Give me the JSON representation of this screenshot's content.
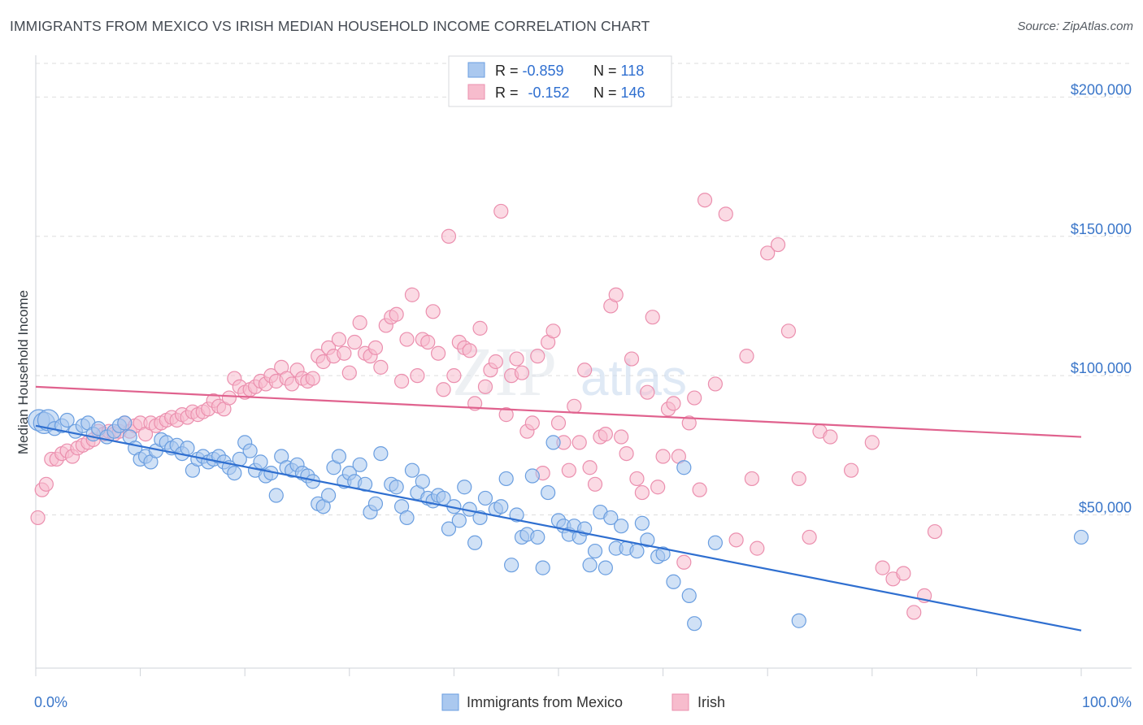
{
  "header": {
    "title": "IMMIGRANTS FROM MEXICO VS IRISH MEDIAN HOUSEHOLD INCOME CORRELATION CHART",
    "source": "Source: ZipAtlas.com"
  },
  "watermark": {
    "zip": "ZIP",
    "atlas": "atlas"
  },
  "colors": {
    "blue_fill": "#aac8ef",
    "blue_stroke": "#6a9ee0",
    "blue_line": "#2f6fd0",
    "pink_fill": "#f7bccd",
    "pink_stroke": "#eb8fae",
    "pink_line": "#e0628e",
    "tick_label": "#3a76c9",
    "grid": "#dddddd"
  },
  "chart_data": {
    "type": "scatter",
    "xlabel": "",
    "ylabel": "Median Household Income",
    "xlim": [
      0,
      100
    ],
    "ylim": [
      -5000,
      215000
    ],
    "x_tick_labels": [
      {
        "value": 0,
        "label": "0.0%"
      },
      {
        "value": 100,
        "label": "100.0%"
      }
    ],
    "y_ticks": [
      {
        "value": 50000,
        "label": "$50,000"
      },
      {
        "value": 100000,
        "label": "$100,000"
      },
      {
        "value": 150000,
        "label": "$150,000"
      },
      {
        "value": 200000,
        "label": "$200,000"
      }
    ],
    "grid": "horizontal dashed",
    "legend_placement": "top-center",
    "series": [
      {
        "name": "Immigrants from Mexico",
        "color": "blue",
        "R": "-0.859",
        "N": "118",
        "trend": [
          [
            0,
            82000
          ],
          [
            100,
            8500
          ]
        ],
        "points": [
          [
            0.3,
            84000
          ],
          [
            0.8,
            83000
          ],
          [
            1.2,
            84000
          ],
          [
            1.8,
            81000
          ],
          [
            2.5,
            82000
          ],
          [
            3.0,
            84000
          ],
          [
            3.8,
            80000
          ],
          [
            4.5,
            82000
          ],
          [
            5.0,
            83000
          ],
          [
            5.5,
            79000
          ],
          [
            6.0,
            81000
          ],
          [
            6.8,
            78000
          ],
          [
            7.5,
            80000
          ],
          [
            8.0,
            82000
          ],
          [
            8.5,
            83000
          ],
          [
            9.0,
            78000
          ],
          [
            9.5,
            74000
          ],
          [
            10.0,
            70000
          ],
          [
            10.5,
            71000
          ],
          [
            11.0,
            69000
          ],
          [
            11.5,
            73000
          ],
          [
            12.0,
            77000
          ],
          [
            12.5,
            76000
          ],
          [
            13.0,
            74000
          ],
          [
            13.5,
            75000
          ],
          [
            14.0,
            72000
          ],
          [
            14.5,
            74000
          ],
          [
            15.0,
            66000
          ],
          [
            15.5,
            70000
          ],
          [
            16.0,
            71000
          ],
          [
            16.5,
            69000
          ],
          [
            17.0,
            70000
          ],
          [
            17.5,
            71000
          ],
          [
            18.0,
            69000
          ],
          [
            18.5,
            67000
          ],
          [
            19.0,
            65000
          ],
          [
            19.5,
            70000
          ],
          [
            20.0,
            76000
          ],
          [
            20.5,
            73000
          ],
          [
            21.0,
            66000
          ],
          [
            21.5,
            69000
          ],
          [
            22.0,
            64000
          ],
          [
            22.5,
            65000
          ],
          [
            23.0,
            57000
          ],
          [
            23.5,
            71000
          ],
          [
            24.0,
            67000
          ],
          [
            24.5,
            66000
          ],
          [
            25.0,
            68000
          ],
          [
            25.5,
            65000
          ],
          [
            26.0,
            64000
          ],
          [
            26.5,
            62000
          ],
          [
            27.0,
            54000
          ],
          [
            27.5,
            53000
          ],
          [
            28.0,
            57000
          ],
          [
            28.5,
            67000
          ],
          [
            29.0,
            71000
          ],
          [
            29.5,
            62000
          ],
          [
            30.0,
            65000
          ],
          [
            30.5,
            62000
          ],
          [
            31.0,
            68000
          ],
          [
            31.5,
            61000
          ],
          [
            32.0,
            51000
          ],
          [
            32.5,
            54000
          ],
          [
            33.0,
            72000
          ],
          [
            34.0,
            61000
          ],
          [
            34.5,
            60000
          ],
          [
            35.0,
            53000
          ],
          [
            35.5,
            49000
          ],
          [
            36.0,
            66000
          ],
          [
            36.5,
            58000
          ],
          [
            37.0,
            62000
          ],
          [
            37.5,
            56000
          ],
          [
            38.0,
            55000
          ],
          [
            38.5,
            57000
          ],
          [
            39.0,
            56000
          ],
          [
            39.5,
            45000
          ],
          [
            40.0,
            53000
          ],
          [
            40.5,
            48000
          ],
          [
            41.0,
            60000
          ],
          [
            41.5,
            52000
          ],
          [
            42.0,
            40000
          ],
          [
            42.5,
            49000
          ],
          [
            43.0,
            56000
          ],
          [
            44.0,
            52000
          ],
          [
            44.5,
            53000
          ],
          [
            45.0,
            63000
          ],
          [
            45.5,
            32000
          ],
          [
            46.0,
            50000
          ],
          [
            46.5,
            42000
          ],
          [
            47.0,
            43000
          ],
          [
            47.5,
            64000
          ],
          [
            48.0,
            42000
          ],
          [
            48.5,
            31000
          ],
          [
            49.0,
            58000
          ],
          [
            49.5,
            76000
          ],
          [
            50.0,
            48000
          ],
          [
            50.5,
            46000
          ],
          [
            51.0,
            43000
          ],
          [
            51.5,
            46000
          ],
          [
            52.0,
            42000
          ],
          [
            52.5,
            45000
          ],
          [
            53.0,
            32000
          ],
          [
            53.5,
            37000
          ],
          [
            54.0,
            51000
          ],
          [
            54.5,
            31000
          ],
          [
            55.0,
            49000
          ],
          [
            55.5,
            38000
          ],
          [
            56.0,
            46000
          ],
          [
            56.5,
            38000
          ],
          [
            57.5,
            37000
          ],
          [
            58.0,
            47000
          ],
          [
            58.5,
            41000
          ],
          [
            59.5,
            35000
          ],
          [
            60.0,
            36000
          ],
          [
            61.0,
            26000
          ],
          [
            62.0,
            67000
          ],
          [
            62.5,
            21000
          ],
          [
            63.0,
            11000
          ],
          [
            65.0,
            40000
          ],
          [
            73.0,
            12000
          ],
          [
            100.0,
            42000
          ]
        ]
      },
      {
        "name": "Irish",
        "color": "pink",
        "R": "-0.152",
        "N": "146",
        "trend": [
          [
            0,
            96000
          ],
          [
            100,
            78000
          ]
        ],
        "points": [
          [
            0.2,
            49000
          ],
          [
            0.6,
            59000
          ],
          [
            1.0,
            61000
          ],
          [
            1.5,
            70000
          ],
          [
            2.0,
            70000
          ],
          [
            2.5,
            72000
          ],
          [
            3.0,
            73000
          ],
          [
            3.5,
            71000
          ],
          [
            4.0,
            74000
          ],
          [
            4.5,
            75000
          ],
          [
            5.0,
            76000
          ],
          [
            5.5,
            77000
          ],
          [
            6.0,
            80000
          ],
          [
            6.5,
            79000
          ],
          [
            7.0,
            80000
          ],
          [
            7.5,
            79000
          ],
          [
            8.0,
            80000
          ],
          [
            8.5,
            83000
          ],
          [
            9.0,
            80000
          ],
          [
            9.5,
            82000
          ],
          [
            10.0,
            83000
          ],
          [
            10.5,
            79000
          ],
          [
            11.0,
            83000
          ],
          [
            11.5,
            82000
          ],
          [
            12.0,
            83000
          ],
          [
            12.5,
            84000
          ],
          [
            13.0,
            85000
          ],
          [
            13.5,
            84000
          ],
          [
            14.0,
            86000
          ],
          [
            14.5,
            85000
          ],
          [
            15.0,
            87000
          ],
          [
            15.5,
            86000
          ],
          [
            16.0,
            87000
          ],
          [
            16.5,
            88000
          ],
          [
            17.0,
            91000
          ],
          [
            17.5,
            89000
          ],
          [
            18.0,
            88000
          ],
          [
            18.5,
            92000
          ],
          [
            19.0,
            99000
          ],
          [
            19.5,
            96000
          ],
          [
            20.0,
            94000
          ],
          [
            20.5,
            95000
          ],
          [
            21.0,
            96000
          ],
          [
            21.5,
            98000
          ],
          [
            22.0,
            97000
          ],
          [
            22.5,
            100000
          ],
          [
            23.0,
            98000
          ],
          [
            23.5,
            103000
          ],
          [
            24.0,
            99000
          ],
          [
            24.5,
            97000
          ],
          [
            25.0,
            102000
          ],
          [
            25.5,
            99000
          ],
          [
            26.0,
            98000
          ],
          [
            26.5,
            99000
          ],
          [
            27.0,
            107000
          ],
          [
            27.5,
            105000
          ],
          [
            28.0,
            110000
          ],
          [
            28.5,
            107000
          ],
          [
            29.0,
            113000
          ],
          [
            29.5,
            108000
          ],
          [
            30.0,
            101000
          ],
          [
            30.5,
            112000
          ],
          [
            31.0,
            119000
          ],
          [
            31.5,
            108000
          ],
          [
            32.0,
            107000
          ],
          [
            32.5,
            110000
          ],
          [
            33.0,
            103000
          ],
          [
            33.5,
            118000
          ],
          [
            34.0,
            121000
          ],
          [
            34.5,
            122000
          ],
          [
            35.0,
            98000
          ],
          [
            35.5,
            113000
          ],
          [
            36.0,
            129000
          ],
          [
            36.5,
            100000
          ],
          [
            37.0,
            113000
          ],
          [
            37.5,
            112000
          ],
          [
            38.0,
            123000
          ],
          [
            38.5,
            108000
          ],
          [
            39.0,
            95000
          ],
          [
            39.5,
            150000
          ],
          [
            40.0,
            100000
          ],
          [
            40.5,
            112000
          ],
          [
            41.0,
            110000
          ],
          [
            41.5,
            109000
          ],
          [
            42.0,
            90000
          ],
          [
            42.5,
            117000
          ],
          [
            43.0,
            96000
          ],
          [
            43.5,
            102000
          ],
          [
            44.0,
            105000
          ],
          [
            44.5,
            159000
          ],
          [
            45.0,
            86000
          ],
          [
            45.5,
            100000
          ],
          [
            46.0,
            106000
          ],
          [
            46.5,
            101000
          ],
          [
            47.0,
            80000
          ],
          [
            47.5,
            83000
          ],
          [
            48.0,
            107000
          ],
          [
            48.5,
            65000
          ],
          [
            49.0,
            112000
          ],
          [
            49.5,
            116000
          ],
          [
            50.0,
            83000
          ],
          [
            50.5,
            76000
          ],
          [
            51.0,
            66000
          ],
          [
            51.5,
            89000
          ],
          [
            52.0,
            76000
          ],
          [
            52.5,
            102000
          ],
          [
            53.0,
            67000
          ],
          [
            53.5,
            61000
          ],
          [
            54.0,
            78000
          ],
          [
            54.5,
            79000
          ],
          [
            55.0,
            125000
          ],
          [
            55.5,
            129000
          ],
          [
            56.0,
            78000
          ],
          [
            56.5,
            72000
          ],
          [
            57.0,
            106000
          ],
          [
            57.5,
            63000
          ],
          [
            58.0,
            58000
          ],
          [
            58.5,
            94000
          ],
          [
            59.0,
            121000
          ],
          [
            59.5,
            60000
          ],
          [
            60.0,
            71000
          ],
          [
            60.5,
            88000
          ],
          [
            61.0,
            90000
          ],
          [
            61.5,
            71000
          ],
          [
            62.0,
            33000
          ],
          [
            62.5,
            83000
          ],
          [
            63.0,
            92000
          ],
          [
            63.5,
            59000
          ],
          [
            64.0,
            163000
          ],
          [
            65.0,
            97000
          ],
          [
            66.0,
            158000
          ],
          [
            67.0,
            41000
          ],
          [
            68.0,
            107000
          ],
          [
            68.5,
            63000
          ],
          [
            69.0,
            38000
          ],
          [
            70.0,
            144000
          ],
          [
            71.0,
            147000
          ],
          [
            72.0,
            116000
          ],
          [
            73.0,
            63000
          ],
          [
            74.0,
            42000
          ],
          [
            75.0,
            80000
          ],
          [
            76.0,
            78000
          ],
          [
            78.0,
            66000
          ],
          [
            80.0,
            76000
          ],
          [
            81.0,
            31000
          ],
          [
            82.0,
            27000
          ],
          [
            83.0,
            29000
          ],
          [
            84.0,
            15000
          ],
          [
            85.0,
            21000
          ],
          [
            86.0,
            44000
          ]
        ]
      }
    ]
  }
}
